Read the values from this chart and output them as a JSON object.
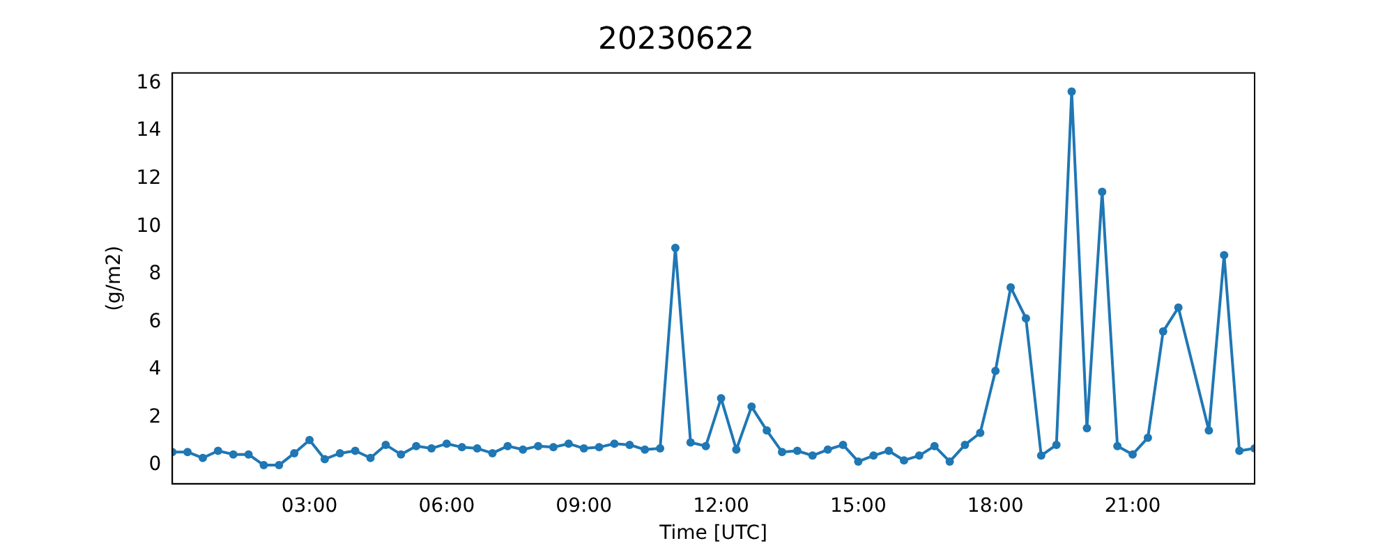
{
  "chart_data": {
    "type": "line",
    "title": "20230622",
    "xlabel": "Time [UTC]",
    "ylabel": "(g/m2)",
    "x": [
      0,
      0.3333,
      0.6667,
      1,
      1.3333,
      1.6667,
      2,
      2.3333,
      2.6667,
      3,
      3.3333,
      3.6667,
      4,
      4.3333,
      4.6667,
      5,
      5.3333,
      5.6667,
      6,
      6.3333,
      6.6667,
      7,
      7.3333,
      7.6667,
      8,
      8.3333,
      8.6667,
      9,
      9.3333,
      9.6667,
      10,
      10.3333,
      10.6667,
      11,
      11.3333,
      11.6667,
      12,
      12.3333,
      12.6667,
      13,
      13.3333,
      13.6667,
      14,
      14.3333,
      14.6667,
      15,
      15.3333,
      15.6667,
      16,
      16.3333,
      16.6667,
      17,
      17.3333,
      17.6667,
      18,
      18.3333,
      18.6667,
      19,
      19.3333,
      19.6667,
      20,
      20.3333,
      20.6667,
      21,
      21.3333,
      21.6667,
      22,
      22.6667,
      23,
      23.3333,
      23.6667
    ],
    "values": [
      0.55,
      0.55,
      0.3,
      0.6,
      0.45,
      0.45,
      0.0,
      0.0,
      0.5,
      1.05,
      0.25,
      0.5,
      0.6,
      0.3,
      0.85,
      0.45,
      0.8,
      0.7,
      0.9,
      0.75,
      0.7,
      0.5,
      0.8,
      0.65,
      0.8,
      0.75,
      0.9,
      0.7,
      0.75,
      0.9,
      0.85,
      0.65,
      0.7,
      9.1,
      0.95,
      0.8,
      2.8,
      0.65,
      2.45,
      1.45,
      0.55,
      0.6,
      0.4,
      0.65,
      0.85,
      0.15,
      0.4,
      0.6,
      0.2,
      0.4,
      0.8,
      0.15,
      0.85,
      1.35,
      3.95,
      7.45,
      6.15,
      0.4,
      0.85,
      15.65,
      1.55,
      11.45,
      0.8,
      0.45,
      1.15,
      5.6,
      6.6,
      1.45,
      8.8,
      0.6,
      0.7
    ],
    "color": "#1f77b4",
    "marker": "circle",
    "line_style": "solid",
    "grid": false,
    "legend": false,
    "xlim": [
      0,
      23.6667
    ],
    "xticks": [
      {
        "value": 3,
        "label": "03:00"
      },
      {
        "value": 6,
        "label": "06:00"
      },
      {
        "value": 9,
        "label": "09:00"
      },
      {
        "value": 12,
        "label": "12:00"
      },
      {
        "value": 15,
        "label": "15:00"
      },
      {
        "value": 18,
        "label": "18:00"
      },
      {
        "value": 21,
        "label": "21:00"
      }
    ],
    "ylim": [
      -0.78,
      16.43
    ],
    "yticks": [
      0,
      2,
      4,
      6,
      8,
      10,
      12,
      14,
      16
    ]
  }
}
